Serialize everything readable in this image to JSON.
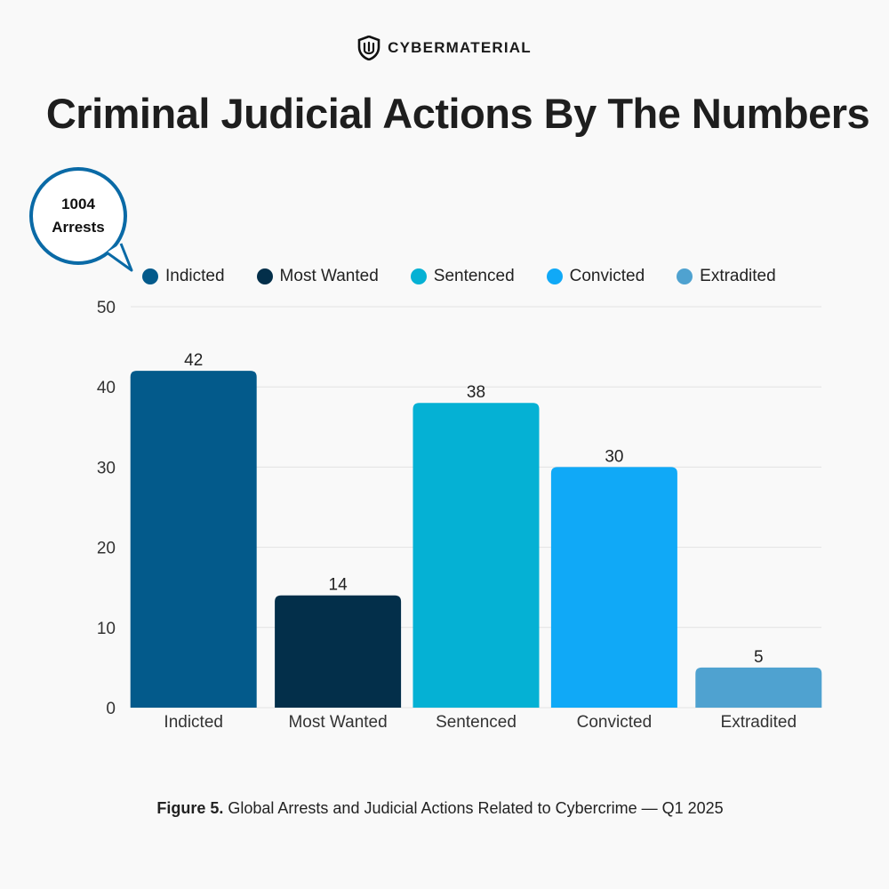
{
  "brand": {
    "name": "CYBERMATERIAL",
    "logo_icon": "shield-icon"
  },
  "header": {
    "title": "Criminal Judicial Actions By The Numbers"
  },
  "callout": {
    "value": "1004",
    "label": "Arrests",
    "border_color": "#0a6aa6"
  },
  "caption": {
    "figure_label": "Figure 5.",
    "text": "Global Arrests and Judicial Actions Related to Cybercrime — Q1 2025"
  },
  "chart_data": {
    "type": "bar",
    "title": "Criminal Judicial Actions By The Numbers",
    "xlabel": "",
    "ylabel": "",
    "categories": [
      "Indicted",
      "Most Wanted",
      "Sentenced",
      "Convicted",
      "Extradited"
    ],
    "values": [
      42,
      14,
      38,
      30,
      5
    ],
    "colors": [
      "#035a8b",
      "#032f4a",
      "#05b1d4",
      "#10a9f7",
      "#4fa2d0"
    ],
    "ylim": [
      0,
      50
    ],
    "yticks": [
      0,
      10,
      20,
      30,
      40,
      50
    ],
    "grid": true,
    "legend": "top",
    "data_labels": true
  }
}
